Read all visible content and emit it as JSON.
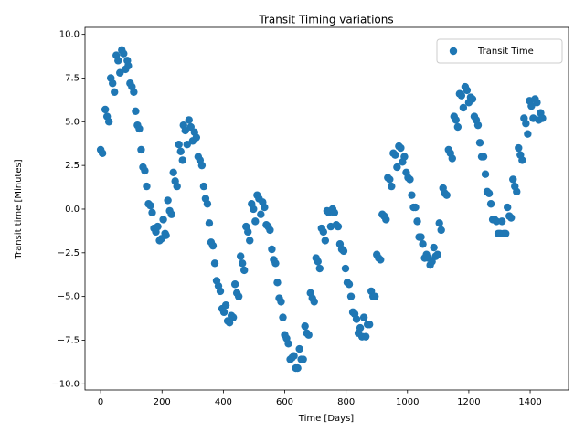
{
  "chart_data": {
    "type": "scatter",
    "title": "Transit Timing variations",
    "x_label": "Time [Days]",
    "y_label": "Transit time [Minutes]",
    "xlim": [
      -51,
      1525
    ],
    "ylim": [
      -10.35,
      10.4
    ],
    "xticks": [
      0,
      200,
      400,
      600,
      800,
      1000,
      1200,
      1400
    ],
    "yticks": [
      {
        "value": -10,
        "label": "−10.0"
      },
      {
        "value": -7.5,
        "label": "−7.5"
      },
      {
        "value": -5,
        "label": "−5.0"
      },
      {
        "value": -2.5,
        "label": "−2.5"
      },
      {
        "value": 0,
        "label": "0.0"
      },
      {
        "value": 2.5,
        "label": "2.5"
      },
      {
        "value": 5,
        "label": "5.0"
      },
      {
        "value": 7.5,
        "label": "7.5"
      },
      {
        "value": 10,
        "label": "10.0"
      }
    ],
    "legend": "upper right",
    "series": [
      {
        "name": "Transit Time",
        "color": "#1f77b4",
        "x": [
          0,
          6,
          15,
          21,
          27,
          33,
          39,
          45,
          51,
          57,
          63,
          69,
          75,
          81,
          87,
          90,
          96,
          102,
          108,
          114,
          120,
          126,
          132,
          138,
          144,
          150,
          156,
          162,
          168,
          174,
          180,
          186,
          192,
          198,
          204,
          210,
          213,
          219,
          225,
          231,
          237,
          243,
          249,
          255,
          261,
          267,
          270,
          276,
          282,
          288,
          294,
          300,
          306,
          312,
          318,
          324,
          330,
          336,
          342,
          348,
          354,
          360,
          366,
          372,
          378,
          384,
          390,
          396,
          402,
          408,
          414,
          420,
          426,
          432,
          438,
          444,
          450,
          456,
          462,
          468,
          474,
          480,
          486,
          492,
          498,
          504,
          510,
          516,
          522,
          528,
          534,
          540,
          546,
          552,
          558,
          564,
          570,
          576,
          582,
          588,
          594,
          600,
          606,
          612,
          618,
          624,
          630,
          636,
          642,
          648,
          654,
          660,
          666,
          672,
          678,
          684,
          690,
          696,
          702,
          708,
          714,
          720,
          726,
          732,
          738,
          744,
          750,
          756,
          762,
          768,
          774,
          780,
          786,
          792,
          798,
          804,
          810,
          816,
          822,
          828,
          834,
          840,
          846,
          852,
          858,
          864,
          870,
          876,
          882,
          888,
          894,
          900,
          906,
          912,
          918,
          924,
          930,
          936,
          942,
          948,
          954,
          960,
          966,
          972,
          978,
          984,
          990,
          996,
          1002,
          1008,
          1014,
          1020,
          1026,
          1032,
          1038,
          1044,
          1050,
          1056,
          1062,
          1068,
          1074,
          1080,
          1086,
          1092,
          1098,
          1104,
          1110,
          1116,
          1122,
          1128,
          1134,
          1140,
          1146,
          1152,
          1158,
          1164,
          1170,
          1176,
          1182,
          1188,
          1194,
          1200,
          1206,
          1212,
          1218,
          1224,
          1230,
          1236,
          1242,
          1248,
          1254,
          1260,
          1266,
          1272,
          1278,
          1284,
          1290,
          1296,
          1302,
          1308,
          1314,
          1320,
          1326,
          1332,
          1338,
          1344,
          1350,
          1356,
          1362,
          1368,
          1374,
          1380,
          1386,
          1392,
          1398,
          1404,
          1410,
          1416,
          1422,
          1428,
          1434,
          1440
        ],
        "values": [
          3.4,
          3.2,
          5.7,
          5.3,
          5.0,
          7.5,
          7.2,
          6.7,
          8.8,
          8.5,
          7.8,
          9.1,
          8.9,
          8.0,
          8.5,
          8.2,
          7.2,
          7.0,
          6.7,
          5.6,
          4.8,
          4.6,
          3.4,
          2.4,
          2.2,
          1.3,
          0.3,
          0.2,
          -0.2,
          -1.1,
          -1.3,
          -1.0,
          -1.8,
          -1.7,
          -0.6,
          -1.4,
          -1.5,
          0.5,
          -0.1,
          -0.3,
          2.1,
          1.6,
          1.3,
          3.7,
          3.3,
          2.8,
          4.8,
          4.5,
          3.7,
          5.1,
          4.7,
          3.9,
          4.4,
          4.1,
          3.0,
          2.8,
          2.5,
          1.3,
          0.6,
          0.3,
          -0.8,
          -1.9,
          -2.1,
          -3.1,
          -4.1,
          -4.4,
          -4.7,
          -5.7,
          -5.9,
          -5.5,
          -6.4,
          -6.5,
          -6.1,
          -6.2,
          -4.3,
          -4.8,
          -5.0,
          -2.7,
          -3.1,
          -3.5,
          -1.0,
          -1.3,
          -1.8,
          0.3,
          0.0,
          -0.7,
          0.8,
          0.6,
          -0.3,
          0.4,
          0.1,
          -0.9,
          -1.0,
          -1.2,
          -2.3,
          -2.9,
          -3.1,
          -4.2,
          -5.1,
          -5.3,
          -6.2,
          -7.2,
          -7.4,
          -7.7,
          -8.6,
          -8.5,
          -8.4,
          -9.1,
          -9.1,
          -8.0,
          -8.6,
          -8.6,
          -6.7,
          -7.1,
          -7.2,
          -4.8,
          -5.1,
          -5.3,
          -2.8,
          -3.0,
          -3.4,
          -1.1,
          -1.3,
          -1.8,
          -0.1,
          -0.2,
          -1.0,
          0.0,
          -0.2,
          -0.9,
          -1.0,
          -2.0,
          -2.3,
          -2.4,
          -3.4,
          -4.2,
          -4.3,
          -5.0,
          -5.9,
          -6.0,
          -6.3,
          -7.1,
          -6.8,
          -7.3,
          -6.2,
          -7.3,
          -6.6,
          -6.6,
          -4.7,
          -5.0,
          -5.0,
          -2.6,
          -2.8,
          -2.9,
          -0.3,
          -0.4,
          -0.6,
          1.8,
          1.7,
          1.3,
          3.2,
          3.1,
          2.4,
          3.6,
          3.5,
          2.7,
          3.0,
          2.1,
          1.8,
          1.7,
          0.8,
          0.1,
          0.1,
          -0.7,
          -1.6,
          -1.6,
          -2.0,
          -2.8,
          -2.6,
          -2.8,
          -3.2,
          -3.0,
          -2.2,
          -2.7,
          -2.6,
          -0.8,
          -1.2,
          1.2,
          0.9,
          0.8,
          3.4,
          3.2,
          2.9,
          5.3,
          5.1,
          4.7,
          6.6,
          6.5,
          5.8,
          7.0,
          6.8,
          6.1,
          6.4,
          6.3,
          5.3,
          5.1,
          4.8,
          3.8,
          3.0,
          3.0,
          2.0,
          1.0,
          0.9,
          0.3,
          -0.6,
          -0.6,
          -0.7,
          -1.4,
          -1.4,
          -0.7,
          -1.4,
          -1.4,
          0.1,
          -0.4,
          -0.5,
          1.7,
          1.3,
          1.0,
          3.5,
          3.1,
          2.8,
          5.2,
          4.9,
          4.3,
          6.2,
          5.9,
          5.2,
          6.3,
          6.1,
          5.1,
          5.5,
          5.2
        ]
      }
    ]
  }
}
